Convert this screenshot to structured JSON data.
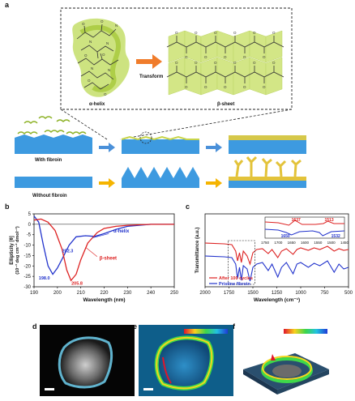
{
  "figure": {
    "panel_labels": [
      "a",
      "b",
      "c",
      "d",
      "e",
      "f"
    ],
    "panel_a": {
      "alpha_label": "α-helix",
      "beta_label": "β-sheet",
      "transform_label": "Transform",
      "with_label": "With  fibroin",
      "without_label": "Without  fibroin",
      "arrow_color": "#f07c2b",
      "blue_arrow_color": "#4a90d9",
      "yellow_arrow_color": "#f5b400",
      "substrate_color": "#3d9ae0",
      "film_color": "#d6c84a"
    },
    "panel_b": {
      "ylabel": "Ellipticity [θ]",
      "ylabel_units": "(10⁻³ deg cm⁻² dmol⁻¹)",
      "xlabel": "Wavelength (nm)",
      "annotations": [
        "α-helix",
        "β-sheet",
        "202.3",
        "198.0",
        "205.8"
      ]
    },
    "panel_c": {
      "ylabel": "Transmittance (a.u.)",
      "xlabel": "Wavelength (cm⁻¹)",
      "inset_labels": [
        "1637",
        "1513",
        "1650",
        "1532"
      ],
      "legend": [
        "After 100 cycles",
        "Pristine fibroin"
      ]
    },
    "chart_data": [
      {
        "type": "line",
        "panel": "b",
        "xlabel": "Wavelength (nm)",
        "ylabel": "Ellipticity [θ] (10⁻³ deg cm⁻² dmol⁻¹)",
        "xlim": [
          190,
          250
        ],
        "ylim": [
          -30,
          5
        ],
        "xticks": [
          190,
          200,
          210,
          220,
          230,
          240,
          250
        ],
        "yticks": [
          5,
          0,
          -5,
          -10,
          -15,
          -20,
          -25,
          -30
        ],
        "series": [
          {
            "name": "α-helix",
            "color": "#2233cc",
            "x": [
              190,
              192,
              194,
              196,
              198,
              200,
              202.3,
              205,
              208,
              212,
              216,
              220,
              225,
              230,
              240,
              250
            ],
            "y": [
              4,
              1,
              -10,
              -20,
              -24,
              -21,
              -16,
              -10,
              -6,
              -5.5,
              -5.8,
              -4.5,
              -2.5,
              -1,
              0,
              0
            ]
          },
          {
            "name": "β-sheet",
            "color": "#dd2222",
            "x": [
              190,
              193,
              196,
              199,
              202,
              204,
              205.8,
              208,
              210,
              213,
              217,
              220,
              225,
              230,
              240,
              250
            ],
            "y": [
              2,
              2.5,
              1,
              -3,
              -12,
              -22,
              -27,
              -24,
              -17,
              -9,
              -4,
              -2,
              -1,
              -0.5,
              0,
              0
            ]
          }
        ]
      },
      {
        "type": "line",
        "panel": "c",
        "xlabel": "Wavelength (cm⁻¹)",
        "ylabel": "Transmittance (a.u.)",
        "xlim": [
          2000,
          500
        ],
        "xticks": [
          2000,
          1750,
          1500,
          1250,
          1000,
          750,
          500
        ],
        "series": [
          {
            "name": "After 100 cycles",
            "color": "#dd2222"
          },
          {
            "name": "Pristine fibroin",
            "color": "#2233cc"
          }
        ],
        "inset": {
          "xlim": [
            1750,
            1450
          ],
          "xticks": [
            1750,
            1700,
            1650,
            1600,
            1550,
            1500,
            1450
          ]
        }
      }
    ],
    "image_panels": {
      "d": "fluorescence micrograph",
      "e": "intensity heat map",
      "f": "3D intensity map"
    }
  }
}
